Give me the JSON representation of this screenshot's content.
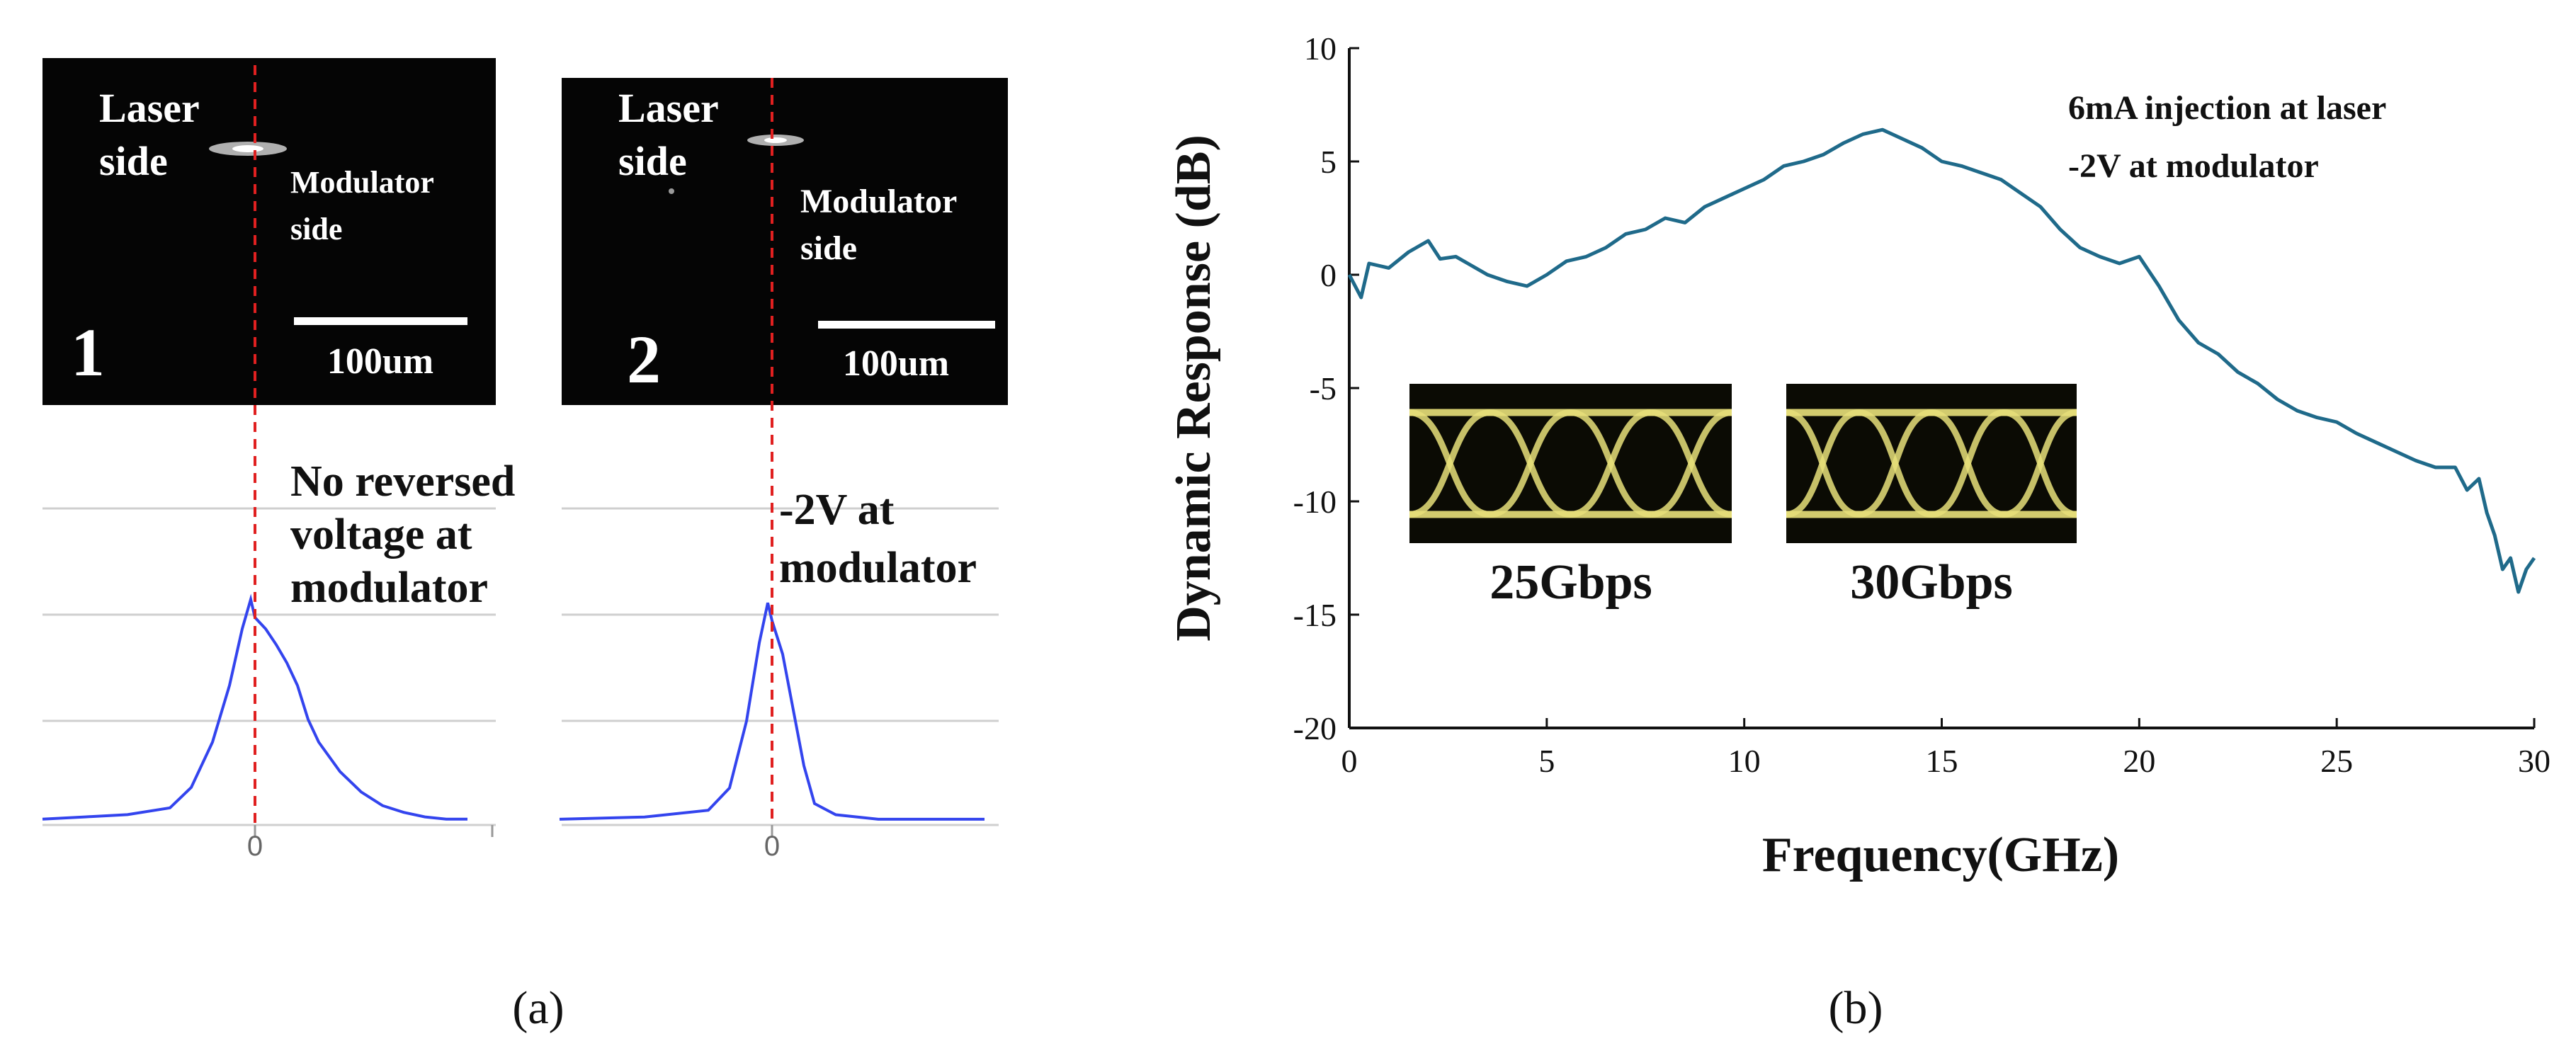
{
  "panel_a": {
    "images": [
      {
        "number": "1",
        "laser_label": [
          "Laser",
          "side"
        ],
        "modulator_label": [
          "Modulator",
          "side"
        ],
        "scale_bar": "100um"
      },
      {
        "number": "2",
        "laser_label": [
          "Laser",
          "side"
        ],
        "modulator_label": [
          "Modulator",
          "side"
        ],
        "scale_bar": "100um"
      }
    ],
    "profile_1_annotation": [
      "No reversed",
      "voltage at",
      "modulator"
    ],
    "profile_2_annotation": [
      "-2V at",
      "modulator"
    ],
    "profile_1_zero_tick": "0",
    "profile_2_zero_tick": "0",
    "caption": "(a)",
    "profile_color": "#3344ee",
    "marker_color": "#e02020"
  },
  "panel_b": {
    "caption": "(b)",
    "annotation": [
      "6mA injection at laser",
      "-2V at modulator"
    ],
    "eye_labels": [
      "25Gbps",
      "30Gbps"
    ],
    "eye_color": "#e8e07a"
  },
  "chart_data": [
    {
      "type": "line",
      "panel": "b",
      "xlabel": "Frequency(GHz)",
      "ylabel": "Dynamic Response (dB)",
      "xlim": [
        0,
        30
      ],
      "ylim": [
        -20,
        10
      ],
      "xticks": [
        0,
        5,
        10,
        15,
        20,
        25,
        30
      ],
      "yticks": [
        -20,
        -15,
        -10,
        -5,
        0,
        5,
        10
      ],
      "grid": false,
      "line_color": "#1f6a8a",
      "series": [
        {
          "x": [
            0,
            0.3,
            0.5,
            1,
            1.5,
            2,
            2.3,
            2.7,
            3,
            3.5,
            4,
            4.5,
            5,
            5.5,
            6,
            6.5,
            7,
            7.5,
            8,
            8.5,
            9,
            9.5,
            10,
            10.5,
            11,
            11.5,
            12,
            12.5,
            13,
            13.5,
            14,
            14.5,
            15,
            15.5,
            16,
            16.5,
            17,
            17.5,
            18,
            18.5,
            19,
            19.5,
            20,
            20.5,
            21,
            21.5,
            22,
            22.5,
            23,
            23.5,
            24,
            24.5,
            25,
            25.5,
            26,
            26.5,
            27,
            27.5,
            28,
            28.3,
            28.6,
            28.8,
            29,
            29.2,
            29.4,
            29.6,
            29.8,
            30
          ],
          "values": [
            0,
            -1,
            0.5,
            0.3,
            1,
            1.5,
            0.7,
            0.8,
            0.5,
            0,
            -0.3,
            -0.5,
            0,
            0.6,
            0.8,
            1.2,
            1.8,
            2,
            2.5,
            2.3,
            3,
            3.4,
            3.8,
            4.2,
            4.8,
            5,
            5.3,
            5.8,
            6.2,
            6.4,
            6,
            5.6,
            5,
            4.8,
            4.5,
            4.2,
            3.6,
            3,
            2,
            1.2,
            0.8,
            0.5,
            0.8,
            -0.5,
            -2,
            -3,
            -3.5,
            -4.3,
            -4.8,
            -5.5,
            -6,
            -6.3,
            -6.5,
            -7,
            -7.4,
            -7.8,
            -8.2,
            -8.5,
            -8.5,
            -9.5,
            -9,
            -10.5,
            -11.5,
            -13,
            -12.5,
            -14,
            -13,
            -12.5
          ]
        }
      ]
    },
    {
      "type": "line",
      "panel": "a1",
      "xticks": [
        "0"
      ],
      "grid": true,
      "series": [
        {
          "x": [
            -1,
            -0.8,
            -0.6,
            -0.4,
            -0.3,
            -0.2,
            -0.12,
            -0.06,
            -0.02,
            0,
            0.05,
            0.1,
            0.15,
            0.2,
            0.25,
            0.3,
            0.4,
            0.5,
            0.6,
            0.7,
            0.8,
            0.9,
            1
          ],
          "values": [
            0.01,
            0.02,
            0.03,
            0.06,
            0.15,
            0.35,
            0.6,
            0.85,
            0.98,
            0.9,
            0.85,
            0.78,
            0.7,
            0.6,
            0.45,
            0.35,
            0.22,
            0.13,
            0.07,
            0.04,
            0.02,
            0.01,
            0.01
          ]
        }
      ]
    },
    {
      "type": "line",
      "panel": "a2",
      "xticks": [
        "0"
      ],
      "grid": true,
      "series": [
        {
          "x": [
            -1,
            -0.6,
            -0.3,
            -0.2,
            -0.12,
            -0.06,
            -0.02,
            0,
            0.05,
            0.1,
            0.15,
            0.2,
            0.3,
            0.5,
            0.8,
            1
          ],
          "values": [
            0.01,
            0.02,
            0.05,
            0.15,
            0.45,
            0.8,
            0.98,
            0.9,
            0.75,
            0.5,
            0.25,
            0.08,
            0.03,
            0.01,
            0.01,
            0.01
          ]
        }
      ]
    }
  ]
}
